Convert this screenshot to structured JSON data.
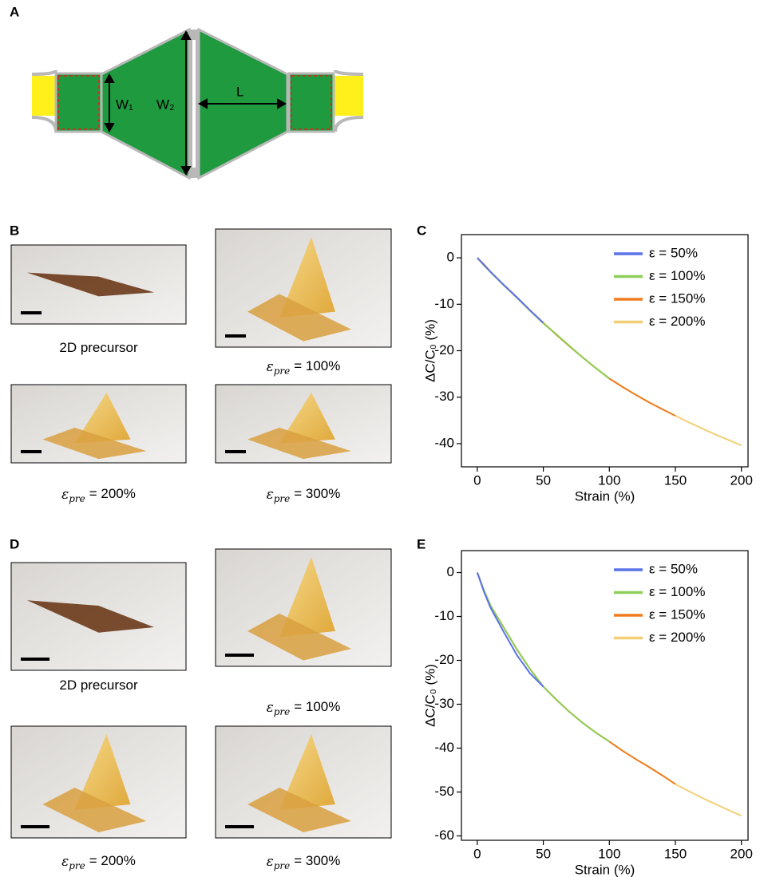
{
  "labels": [
    "A",
    "B",
    "C",
    "D",
    "E"
  ],
  "diagram": {
    "w1": "W₁",
    "w2": "W₂",
    "length": "L"
  },
  "photos": {
    "b": [
      {
        "text": "2D precursor"
      },
      {
        "symbol": "ε",
        "sub": "pre",
        "text": "= 100%"
      },
      {
        "symbol": "ε",
        "sub": "pre",
        "text": "= 200%"
      },
      {
        "symbol": "ε",
        "sub": "pre",
        "text": "= 300%"
      }
    ],
    "d": [
      {
        "text": "2D precursor"
      },
      {
        "symbol": "ε",
        "sub": "pre",
        "text": "= 100%"
      },
      {
        "symbol": "ε",
        "sub": "pre",
        "text": "= 200%"
      },
      {
        "symbol": "ε",
        "sub": "pre",
        "text": "= 300%"
      }
    ]
  },
  "chart_data": [
    {
      "type": "line",
      "xlabel": "Strain (%)",
      "ylabel": "ΔC/C₀ (%)",
      "x": [
        0,
        5,
        10,
        20,
        30,
        40,
        50,
        60,
        70,
        80,
        90,
        100,
        110,
        120,
        130,
        140,
        150,
        160,
        170,
        180,
        190,
        200
      ],
      "xlim": [
        -12,
        205
      ],
      "xticks": [
        0,
        50,
        100,
        150,
        200
      ],
      "ylim": [
        -45,
        5
      ],
      "yticks": [
        0,
        -10,
        -20,
        -30,
        -40
      ],
      "legend": "upper right",
      "series": [
        {
          "name": "ε = 50%",
          "color": "#5b73e8",
          "values": [
            0,
            -1.5,
            -3,
            -5.8,
            -8.5,
            -11.3,
            -14,
            null,
            null,
            null,
            null,
            null,
            null,
            null,
            null,
            null,
            null,
            null,
            null,
            null,
            null,
            null
          ]
        },
        {
          "name": "ε = 100%",
          "color": "#8dcf5a",
          "values": [
            0,
            -1.6,
            -3.1,
            -5.9,
            -8.6,
            -11.4,
            -14.1,
            -16.5,
            -19,
            -21.5,
            -23.8,
            -26,
            null,
            null,
            null,
            null,
            null,
            null,
            null,
            null,
            null,
            null
          ]
        },
        {
          "name": "ε = 150%",
          "color": "#f07c20",
          "values": [
            0,
            -1.4,
            -3,
            -5.8,
            -8.5,
            -11.3,
            -14,
            -16.6,
            -19.1,
            -21.5,
            -23.8,
            -26,
            -27.8,
            -29.5,
            -31.1,
            -32.6,
            -34,
            null,
            null,
            null,
            null,
            null
          ]
        },
        {
          "name": "ε = 200%",
          "color": "#f2cf75",
          "values": [
            0,
            -1.5,
            -3,
            -5.8,
            -8.5,
            -11.3,
            -14,
            -16.5,
            -19,
            -21.5,
            -23.8,
            -26,
            -27.8,
            -29.5,
            -31.1,
            -32.6,
            -34,
            -35.4,
            -36.7,
            -38,
            -39.2,
            -40.4
          ]
        }
      ]
    },
    {
      "type": "line",
      "xlabel": "Strain (%)",
      "ylabel": "ΔC/C₀ (%)",
      "x": [
        0,
        5,
        10,
        20,
        30,
        40,
        50,
        60,
        70,
        80,
        90,
        100,
        110,
        120,
        130,
        140,
        150,
        160,
        170,
        180,
        190,
        200
      ],
      "xlim": [
        -12,
        205
      ],
      "xticks": [
        0,
        50,
        100,
        150,
        200
      ],
      "ylim": [
        -61,
        5
      ],
      "yticks": [
        0,
        -10,
        -20,
        -30,
        -40,
        -50,
        -60
      ],
      "legend": "upper right",
      "series": [
        {
          "name": "ε = 50%",
          "color": "#5b73e8",
          "values": [
            0,
            -4.3,
            -8,
            -13.5,
            -18.8,
            -23,
            -26,
            null,
            null,
            null,
            null,
            null,
            null,
            null,
            null,
            null,
            null,
            null,
            null,
            null,
            null,
            null
          ]
        },
        {
          "name": "ε = 100%",
          "color": "#8dcf5a",
          "values": [
            0,
            -4,
            -7.5,
            -12.5,
            -17.5,
            -22,
            -26,
            -29,
            -31.8,
            -34.3,
            -36.5,
            -38.5,
            null,
            null,
            null,
            null,
            null,
            null,
            null,
            null,
            null,
            null
          ]
        },
        {
          "name": "ε = 150%",
          "color": "#f07c20",
          "values": [
            0,
            -4,
            -7.5,
            -12.5,
            -17.5,
            -22,
            -26,
            -29,
            -31.8,
            -34.3,
            -36.5,
            -38.5,
            -40.6,
            -42.5,
            -44.3,
            -46.2,
            -48.2,
            null,
            null,
            null,
            null,
            null
          ]
        },
        {
          "name": "ε = 200%",
          "color": "#f2cf75",
          "values": [
            0,
            -4,
            -7.5,
            -12.5,
            -17.5,
            -22,
            -26,
            -29,
            -31.8,
            -34.3,
            -36.5,
            -38.5,
            -40.6,
            -42.5,
            -44.3,
            -46.2,
            -48.2,
            -49.8,
            -51.3,
            -52.7,
            -54.1,
            -55.4
          ]
        }
      ]
    }
  ]
}
